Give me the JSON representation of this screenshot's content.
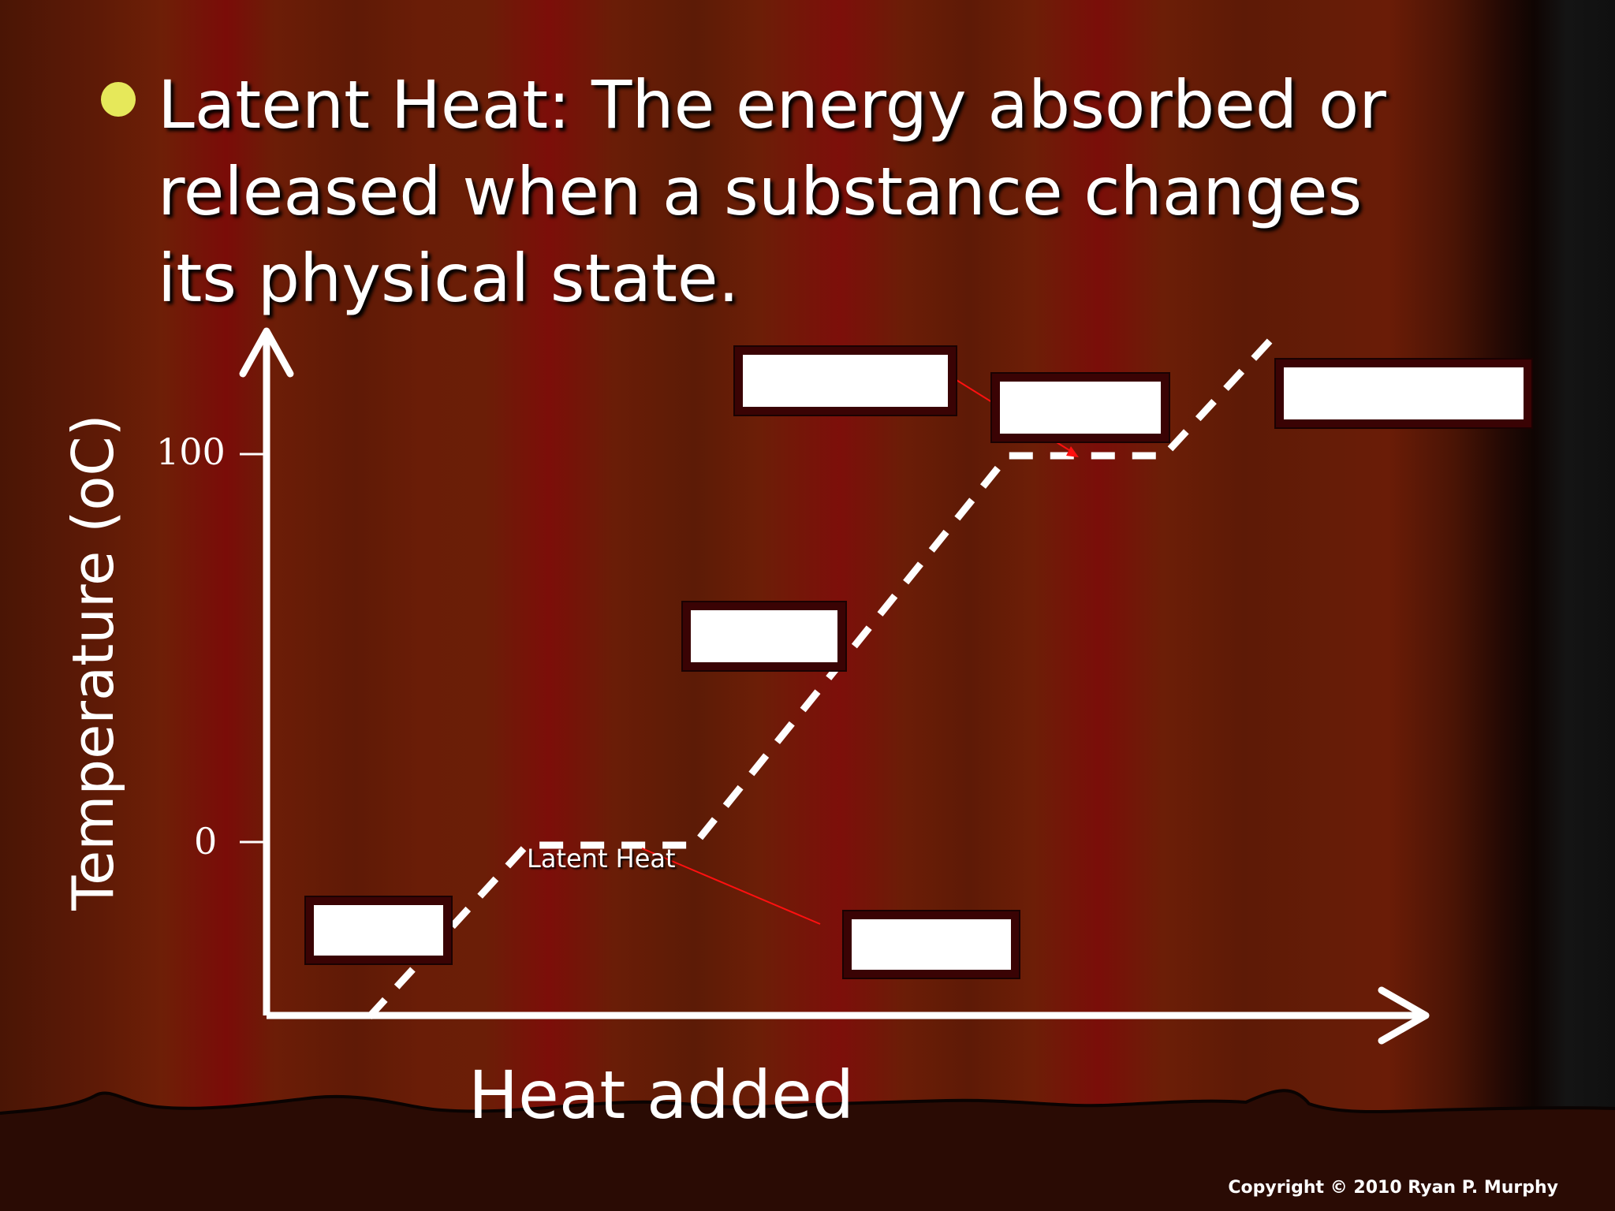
{
  "slide": {
    "bullet_text": "Latent Heat: The energy absorbed or released when a substance changes its physical state.",
    "copyright": "Copyright © 2010 Ryan P. Murphy"
  },
  "graph": {
    "y_axis_label": "Temperature (oC)",
    "x_axis_label": "Heat added",
    "y_ticks": [
      "100",
      "0"
    ],
    "annotation": "Latent Heat"
  },
  "colors": {
    "bullet": "#e6e85a",
    "box_border": "#3a0304",
    "pointer_line": "#ff0000"
  }
}
